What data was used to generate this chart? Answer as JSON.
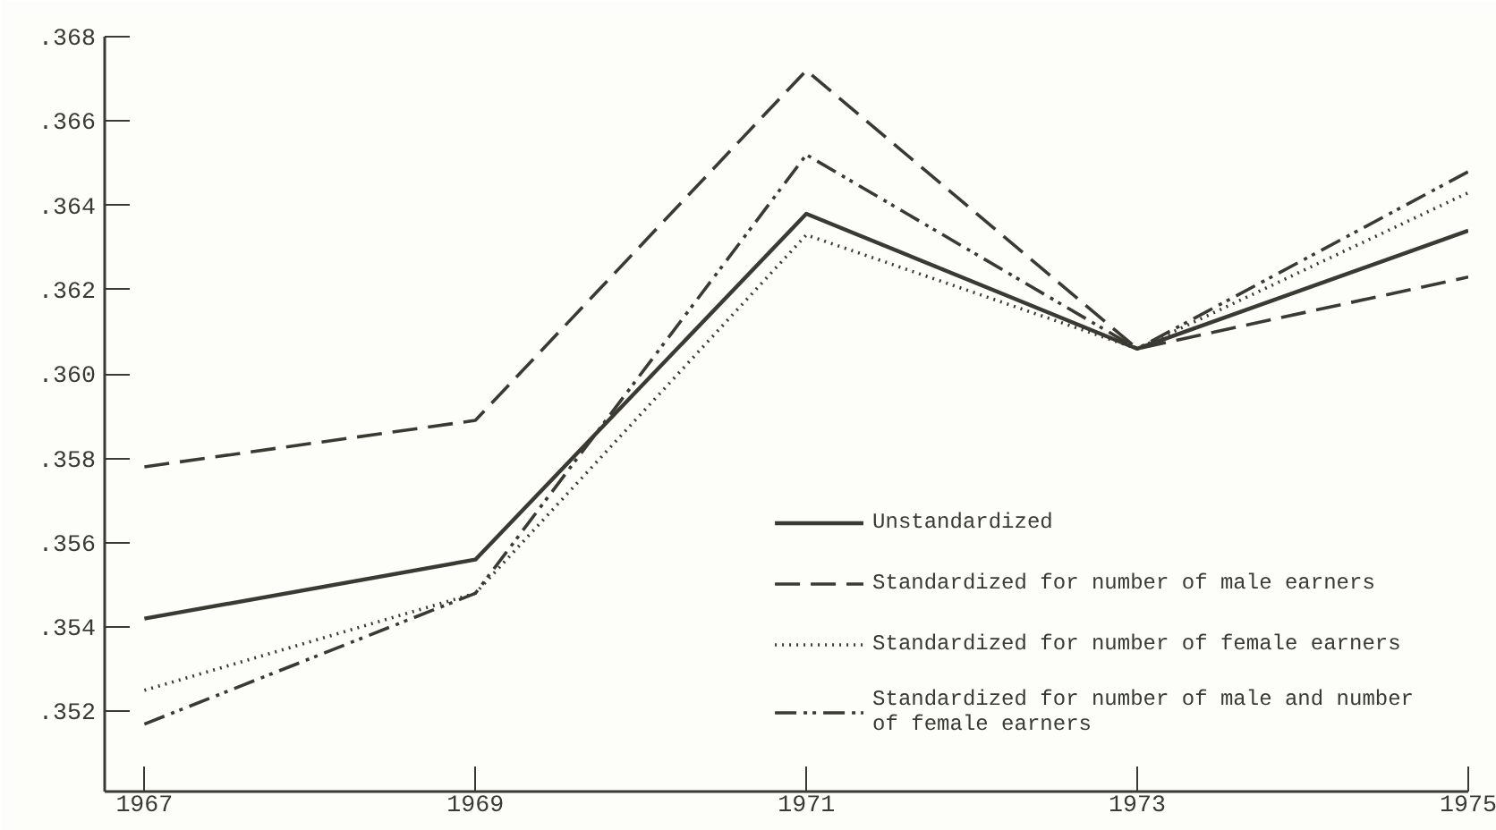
{
  "chart_data": {
    "type": "line",
    "x": [
      1967,
      1969,
      1971,
      1973,
      1975
    ],
    "series": [
      {
        "name": "Unstandardized",
        "color": "#3a3a32",
        "values": [
          0.3542,
          0.3556,
          0.3638,
          0.3606,
          0.3634
        ],
        "line_style": "solid"
      },
      {
        "name": "Standardized for number of male earners",
        "color": "#3a3a32",
        "values": [
          0.3578,
          0.3589,
          0.3672,
          0.3606,
          0.3623
        ],
        "line_style": "dashed"
      },
      {
        "name": "Standardized for number of female earners",
        "color": "#3a3a32",
        "values": [
          0.3525,
          0.3548,
          0.3633,
          0.3606,
          0.3643
        ],
        "line_style": "dotted"
      },
      {
        "name": "Standardized for number of male and number of female earners",
        "color": "#3a3a32",
        "values": [
          0.3517,
          0.3548,
          0.3652,
          0.3606,
          0.3648
        ],
        "line_style": "dashdot"
      }
    ],
    "xlim": [
      1966.76,
      1975
    ],
    "ylim": [
      0.3501,
      0.368
    ],
    "xticks": [
      1967,
      1969,
      1971,
      1973,
      1975
    ],
    "yticks": [
      {
        "value": 0.352,
        "label": ".352"
      },
      {
        "value": 0.354,
        "label": ".354"
      },
      {
        "value": 0.356,
        "label": ".356"
      },
      {
        "value": 0.358,
        "label": ".358"
      },
      {
        "value": 0.36,
        "label": ".360"
      },
      {
        "value": 0.362,
        "label": ".362"
      },
      {
        "value": 0.364,
        "label": ".364"
      },
      {
        "value": 0.366,
        "label": ".366"
      },
      {
        "value": 0.368,
        "label": ".368"
      }
    ],
    "grid": false,
    "legend": "bottom right"
  }
}
